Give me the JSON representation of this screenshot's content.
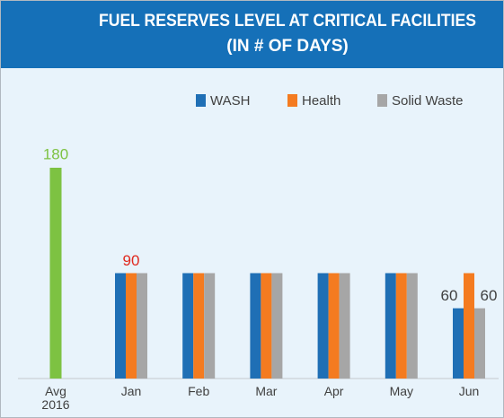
{
  "chart_data": {
    "type": "bar",
    "title": "FUEL RESERVES LEVEL AT CRITICAL FACILITIES",
    "subtitle": "(IN # OF DAYS)",
    "baseline": {
      "category": "Avg 2016",
      "value": 180,
      "color": "#7dc242"
    },
    "categories": [
      "Jan",
      "Feb",
      "Mar",
      "Apr",
      "May",
      "Jun"
    ],
    "series": [
      {
        "name": "WASH",
        "color": "#1f6fb5",
        "label_color": "#404040",
        "values": [
          90,
          90,
          90,
          90,
          90,
          60
        ],
        "value_labels": [
          null,
          null,
          null,
          null,
          null,
          "60"
        ]
      },
      {
        "name": "Health",
        "color": "#f47b20",
        "label_color": "#e0281e",
        "values": [
          90,
          90,
          90,
          90,
          90,
          90
        ],
        "value_labels": [
          "90",
          null,
          null,
          null,
          null,
          null
        ]
      },
      {
        "name": "Solid Waste",
        "color": "#a6a6a6",
        "label_color": "#404040",
        "values": [
          90,
          90,
          90,
          90,
          90,
          60
        ],
        "value_labels": [
          null,
          null,
          null,
          null,
          null,
          "60"
        ]
      }
    ]
  }
}
